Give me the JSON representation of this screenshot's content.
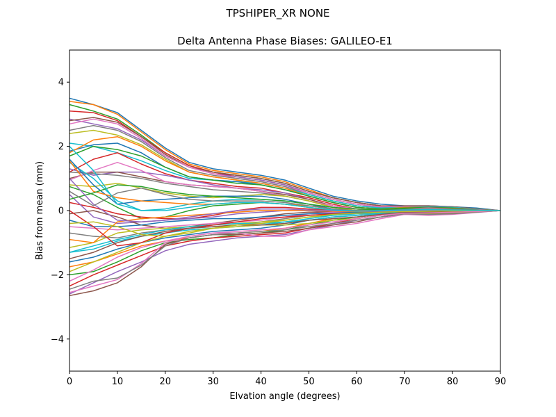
{
  "figure": {
    "suptitle": "TPSHIPER_XR     NONE",
    "title": "Delta Antenna Phase Biases: GALILEO-E1"
  },
  "chart_data": {
    "type": "line",
    "title": "Delta Antenna Phase Biases: GALILEO-E1",
    "xlabel": "Elvation angle (degrees)",
    "ylabel": "Bias from mean (mm)",
    "xlim": [
      0,
      90
    ],
    "ylim": [
      -5,
      5
    ],
    "xticks": [
      0,
      10,
      20,
      30,
      40,
      50,
      60,
      70,
      80,
      90
    ],
    "yticks": [
      -4,
      -2,
      0,
      2,
      4
    ],
    "xtick_labels": [
      "0",
      "10",
      "20",
      "30",
      "40",
      "50",
      "60",
      "70",
      "80",
      "90"
    ],
    "ytick_labels": [
      "−4",
      "−2",
      "0",
      "2",
      "4"
    ],
    "grid": false,
    "x": [
      0,
      5,
      10,
      15,
      20,
      25,
      30,
      35,
      40,
      45,
      50,
      55,
      60,
      65,
      70,
      75,
      80,
      85,
      90
    ],
    "color_cycle": [
      "#1f77b4",
      "#ff7f0e",
      "#2ca02c",
      "#d62728",
      "#9467bd",
      "#8c564b",
      "#e377c2",
      "#7f7f7f",
      "#bcbd22",
      "#17becf"
    ],
    "series": [
      {
        "values": [
          3.5,
          3.3,
          3.05,
          2.5,
          1.95,
          1.5,
          1.3,
          1.2,
          1.1,
          0.95,
          0.7,
          0.45,
          0.3,
          0.2,
          0.15,
          0.15,
          0.12,
          0.08,
          0.0
        ]
      },
      {
        "values": [
          3.4,
          3.3,
          3.0,
          2.45,
          1.9,
          1.45,
          1.25,
          1.15,
          1.05,
          0.9,
          0.65,
          0.4,
          0.25,
          0.15,
          0.12,
          0.1,
          0.1,
          0.05,
          0.0
        ]
      },
      {
        "values": [
          3.3,
          3.1,
          2.85,
          2.35,
          1.8,
          1.4,
          1.2,
          1.1,
          1.0,
          0.85,
          0.6,
          0.4,
          0.25,
          0.15,
          0.1,
          0.1,
          0.08,
          0.05,
          0.0
        ]
      },
      {
        "values": [
          3.1,
          3.05,
          2.8,
          2.3,
          1.8,
          1.4,
          1.2,
          1.05,
          0.95,
          0.8,
          0.55,
          0.35,
          0.2,
          0.12,
          0.1,
          0.08,
          0.08,
          0.04,
          0.0
        ]
      },
      {
        "values": [
          2.85,
          2.7,
          2.55,
          2.2,
          1.7,
          1.35,
          1.15,
          1.05,
          0.95,
          0.8,
          0.55,
          0.35,
          0.2,
          0.1,
          0.08,
          0.1,
          0.08,
          0.04,
          0.0
        ]
      },
      {
        "values": [
          2.8,
          2.9,
          2.75,
          2.3,
          1.75,
          1.35,
          1.2,
          1.1,
          1.0,
          0.85,
          0.6,
          0.4,
          0.25,
          0.15,
          0.15,
          0.15,
          0.12,
          0.06,
          0.0
        ]
      },
      {
        "values": [
          2.7,
          2.85,
          2.7,
          2.25,
          1.7,
          1.35,
          1.15,
          1.0,
          0.9,
          0.75,
          0.55,
          0.35,
          0.2,
          0.12,
          0.12,
          0.12,
          0.1,
          0.05,
          0.0
        ]
      },
      {
        "values": [
          2.5,
          2.65,
          2.5,
          2.15,
          1.65,
          1.25,
          1.1,
          1.0,
          0.9,
          0.75,
          0.5,
          0.3,
          0.15,
          0.08,
          0.1,
          0.12,
          0.1,
          0.05,
          0.0
        ]
      },
      {
        "values": [
          2.4,
          2.5,
          2.35,
          2.05,
          1.6,
          1.2,
          1.05,
          0.95,
          0.85,
          0.7,
          0.5,
          0.3,
          0.15,
          0.08,
          0.08,
          0.1,
          0.08,
          0.04,
          0.0
        ]
      },
      {
        "values": [
          2.1,
          2.0,
          1.8,
          1.55,
          1.25,
          1.0,
          0.95,
          0.9,
          0.85,
          0.7,
          0.5,
          0.3,
          0.15,
          0.08,
          0.1,
          0.12,
          0.1,
          0.05,
          0.0
        ]
      },
      {
        "values": [
          1.85,
          2.05,
          2.1,
          1.8,
          1.35,
          1.05,
          0.95,
          0.9,
          0.8,
          0.65,
          0.45,
          0.25,
          0.1,
          0.05,
          0.08,
          0.1,
          0.08,
          0.04,
          0.0
        ]
      },
      {
        "values": [
          1.8,
          2.2,
          2.3,
          2.0,
          1.55,
          1.2,
          1.05,
          0.95,
          0.85,
          0.7,
          0.45,
          0.25,
          0.1,
          0.05,
          0.1,
          0.1,
          0.08,
          0.04,
          0.0
        ]
      },
      {
        "values": [
          1.7,
          2.0,
          1.9,
          1.7,
          1.35,
          1.05,
          0.95,
          0.85,
          0.8,
          0.65,
          0.45,
          0.25,
          0.1,
          0.05,
          0.08,
          0.1,
          0.08,
          0.04,
          0.0
        ]
      },
      {
        "values": [
          1.2,
          1.6,
          1.8,
          1.45,
          1.15,
          0.95,
          0.85,
          0.75,
          0.7,
          0.55,
          0.4,
          0.2,
          0.05,
          0.02,
          0.05,
          0.08,
          0.06,
          0.03,
          0.0
        ]
      },
      {
        "values": [
          1.3,
          1.1,
          1.2,
          1.2,
          1.1,
          0.95,
          0.8,
          0.7,
          0.65,
          0.55,
          0.35,
          0.15,
          0.05,
          0.02,
          0.05,
          0.08,
          0.06,
          0.03,
          0.0
        ]
      },
      {
        "values": [
          1.0,
          1.2,
          1.2,
          1.05,
          0.9,
          0.8,
          0.75,
          0.7,
          0.6,
          0.5,
          0.35,
          0.15,
          0.05,
          0.0,
          0.05,
          0.08,
          0.06,
          0.03,
          0.0
        ]
      },
      {
        "values": [
          0.95,
          1.25,
          1.5,
          1.25,
          0.9,
          0.8,
          0.75,
          0.7,
          0.6,
          0.45,
          0.3,
          0.15,
          0.05,
          0.0,
          0.05,
          0.08,
          0.05,
          0.03,
          0.0
        ]
      },
      {
        "values": [
          1.2,
          1.15,
          1.1,
          1.0,
          0.85,
          0.75,
          0.65,
          0.6,
          0.55,
          0.45,
          0.3,
          0.1,
          0.0,
          0.0,
          0.05,
          0.05,
          0.05,
          0.02,
          0.0
        ]
      },
      {
        "values": [
          0.8,
          0.75,
          0.85,
          0.7,
          0.55,
          0.45,
          0.4,
          0.45,
          0.5,
          0.45,
          0.3,
          0.1,
          0.0,
          0.0,
          0.05,
          0.05,
          0.05,
          0.02,
          0.0
        ]
      },
      {
        "values": [
          1.5,
          1.0,
          0.3,
          0.0,
          0.05,
          0.2,
          0.3,
          0.35,
          0.35,
          0.3,
          0.2,
          0.05,
          -0.05,
          0.0,
          0.05,
          0.05,
          0.04,
          0.02,
          0.0
        ]
      },
      {
        "values": [
          1.6,
          0.8,
          0.2,
          0.3,
          0.35,
          0.4,
          0.45,
          0.45,
          0.45,
          0.35,
          0.2,
          0.05,
          0.0,
          0.02,
          0.05,
          0.05,
          0.04,
          0.02,
          0.0
        ]
      },
      {
        "values": [
          1.55,
          0.6,
          0.4,
          0.3,
          0.25,
          0.2,
          0.2,
          0.25,
          0.25,
          0.2,
          0.15,
          0.05,
          0.0,
          0.02,
          0.05,
          0.05,
          0.04,
          0.02,
          0.0
        ]
      },
      {
        "values": [
          0.75,
          0.5,
          0.1,
          -0.25,
          -0.2,
          0.0,
          0.15,
          0.2,
          0.25,
          0.2,
          0.1,
          0.0,
          -0.05,
          -0.02,
          0.0,
          0.02,
          0.02,
          0.01,
          0.0
        ]
      },
      {
        "values": [
          0.25,
          0.1,
          -0.1,
          -0.2,
          -0.25,
          -0.25,
          -0.15,
          0.0,
          0.1,
          0.1,
          0.05,
          0.0,
          -0.05,
          -0.05,
          0.0,
          0.02,
          0.02,
          0.01,
          0.0
        ]
      },
      {
        "values": [
          0.5,
          -0.2,
          -0.4,
          -0.35,
          -0.3,
          -0.25,
          -0.2,
          -0.1,
          -0.05,
          0.0,
          0.0,
          -0.05,
          -0.05,
          -0.05,
          -0.02,
          0.0,
          0.0,
          0.0,
          0.0
        ]
      },
      {
        "values": [
          -0.1,
          0.0,
          -0.2,
          -0.45,
          -0.55,
          -0.5,
          -0.4,
          -0.3,
          -0.2,
          -0.1,
          -0.05,
          -0.05,
          -0.05,
          -0.05,
          -0.02,
          0.0,
          0.0,
          0.0,
          0.0
        ]
      },
      {
        "values": [
          -0.5,
          -0.55,
          -0.6,
          -0.55,
          -0.5,
          -0.45,
          -0.4,
          -0.35,
          -0.3,
          -0.2,
          -0.1,
          -0.05,
          -0.05,
          -0.05,
          -0.02,
          0.0,
          0.0,
          0.0,
          0.0
        ]
      },
      {
        "values": [
          -0.7,
          -0.8,
          -0.85,
          -0.7,
          -0.6,
          -0.55,
          -0.5,
          -0.45,
          -0.35,
          -0.25,
          -0.15,
          -0.1,
          -0.1,
          -0.08,
          -0.05,
          -0.02,
          0.0,
          0.0,
          0.0
        ]
      },
      {
        "values": [
          -1.15,
          -1.0,
          -0.7,
          -0.6,
          -0.55,
          -0.5,
          -0.45,
          -0.4,
          -0.35,
          -0.3,
          -0.2,
          -0.15,
          -0.1,
          -0.08,
          -0.05,
          -0.03,
          -0.02,
          0.0,
          0.0
        ]
      },
      {
        "values": [
          -1.3,
          -1.2,
          -0.95,
          -0.8,
          -0.7,
          -0.6,
          -0.55,
          -0.5,
          -0.45,
          -0.35,
          -0.25,
          -0.15,
          -0.1,
          -0.08,
          -0.05,
          -0.05,
          -0.03,
          -0.02,
          0.0
        ]
      },
      {
        "values": [
          -1.6,
          -1.45,
          -1.2,
          -1.0,
          -0.85,
          -0.75,
          -0.65,
          -0.6,
          -0.55,
          -0.45,
          -0.3,
          -0.2,
          -0.15,
          -0.1,
          -0.08,
          -0.06,
          -0.04,
          -0.02,
          0.0
        ]
      },
      {
        "values": [
          -1.75,
          -1.6,
          -1.35,
          -1.1,
          -0.95,
          -0.85,
          -0.75,
          -0.7,
          -0.65,
          -0.55,
          -0.4,
          -0.25,
          -0.2,
          -0.12,
          -0.1,
          -0.08,
          -0.06,
          -0.03,
          0.0
        ]
      },
      {
        "values": [
          -2.0,
          -1.9,
          -1.6,
          -1.25,
          -1.0,
          -0.9,
          -0.85,
          -0.75,
          -0.7,
          -0.6,
          -0.45,
          -0.3,
          -0.2,
          -0.12,
          -0.1,
          -0.08,
          -0.06,
          -0.03,
          0.0
        ]
      },
      {
        "values": [
          -2.35,
          -2.0,
          -1.7,
          -1.4,
          -1.1,
          -0.95,
          -0.85,
          -0.8,
          -0.75,
          -0.7,
          -0.55,
          -0.4,
          -0.25,
          -0.15,
          -0.1,
          -0.1,
          -0.08,
          -0.04,
          0.0
        ]
      },
      {
        "values": [
          -2.6,
          -2.25,
          -1.9,
          -1.6,
          -1.25,
          -1.05,
          -0.95,
          -0.85,
          -0.8,
          -0.75,
          -0.6,
          -0.45,
          -0.3,
          -0.2,
          -0.12,
          -0.1,
          -0.1,
          -0.05,
          0.0
        ]
      },
      {
        "values": [
          -2.65,
          -2.5,
          -2.25,
          -1.75,
          -1.05,
          -0.85,
          -0.75,
          -0.75,
          -0.7,
          -0.65,
          -0.55,
          -0.45,
          -0.35,
          -0.2,
          -0.1,
          -0.1,
          -0.1,
          -0.05,
          0.0
        ]
      },
      {
        "values": [
          -2.55,
          -2.35,
          -2.15,
          -1.65,
          -1.0,
          -0.8,
          -0.7,
          -0.7,
          -0.8,
          -0.8,
          -0.6,
          -0.5,
          -0.4,
          -0.25,
          -0.12,
          -0.15,
          -0.12,
          -0.06,
          0.0
        ]
      },
      {
        "values": [
          -2.45,
          -2.2,
          -2.1,
          -1.7,
          -1.1,
          -0.85,
          -0.75,
          -0.7,
          -0.65,
          -0.6,
          -0.5,
          -0.4,
          -0.3,
          -0.2,
          -0.1,
          -0.12,
          -0.1,
          -0.05,
          0.0
        ]
      },
      {
        "values": [
          -1.9,
          -1.6,
          -1.3,
          -1.0,
          -0.8,
          -0.65,
          -0.55,
          -0.5,
          -0.45,
          -0.45,
          -0.4,
          -0.3,
          -0.25,
          -0.15,
          -0.08,
          -0.08,
          -0.06,
          -0.03,
          0.0
        ]
      },
      {
        "values": [
          -1.3,
          -1.1,
          -0.9,
          -0.75,
          -0.6,
          -0.5,
          -0.45,
          -0.4,
          -0.4,
          -0.35,
          -0.3,
          -0.2,
          -0.15,
          -0.1,
          -0.06,
          -0.05,
          -0.04,
          -0.02,
          0.0
        ]
      },
      {
        "values": [
          -0.3,
          -0.5,
          -0.5,
          -0.45,
          -0.35,
          -0.3,
          -0.25,
          -0.25,
          -0.2,
          -0.15,
          -0.1,
          -0.08,
          -0.05,
          -0.03,
          -0.02,
          -0.01,
          0.0,
          0.0,
          0.0
        ]
      },
      {
        "values": [
          -0.9,
          -1.0,
          -0.35,
          -0.25,
          -0.2,
          -0.15,
          -0.1,
          -0.05,
          0.0,
          0.0,
          0.0,
          -0.02,
          -0.03,
          -0.02,
          -0.01,
          0.0,
          0.0,
          0.0,
          0.0
        ]
      },
      {
        "values": [
          0.35,
          0.55,
          0.8,
          0.75,
          0.6,
          0.5,
          0.45,
          0.4,
          0.35,
          0.3,
          0.2,
          0.1,
          0.05,
          0.02,
          0.05,
          0.05,
          0.04,
          0.02,
          0.0
        ]
      },
      {
        "values": [
          0.0,
          -0.5,
          -1.1,
          -1.0,
          -0.7,
          -0.55,
          -0.45,
          -0.35,
          -0.25,
          -0.2,
          -0.15,
          -0.1,
          -0.08,
          -0.05,
          -0.03,
          -0.02,
          -0.01,
          0.0,
          0.0
        ]
      },
      {
        "values": [
          1.0,
          0.2,
          -0.3,
          -0.35,
          -0.3,
          -0.2,
          -0.1,
          0.0,
          0.05,
          0.05,
          0.02,
          0.0,
          -0.02,
          -0.02,
          0.0,
          0.0,
          0.0,
          0.0,
          0.0
        ]
      },
      {
        "values": [
          -1.5,
          -1.3,
          -1.0,
          -0.8,
          -0.65,
          -0.55,
          -0.5,
          -0.45,
          -0.45,
          -0.4,
          -0.3,
          -0.25,
          -0.2,
          -0.12,
          -0.06,
          -0.05,
          -0.04,
          -0.02,
          0.0
        ]
      },
      {
        "values": [
          -2.2,
          -1.85,
          -1.45,
          -1.15,
          -0.95,
          -0.8,
          -0.7,
          -0.65,
          -0.6,
          -0.55,
          -0.45,
          -0.35,
          -0.25,
          -0.15,
          -0.08,
          -0.07,
          -0.05,
          -0.03,
          0.0
        ]
      },
      {
        "values": [
          0.6,
          0.15,
          0.55,
          0.7,
          0.5,
          0.35,
          0.3,
          0.3,
          0.3,
          0.25,
          0.15,
          0.05,
          0.0,
          0.0,
          0.03,
          0.04,
          0.03,
          0.02,
          0.0
        ]
      },
      {
        "values": [
          -0.4,
          -0.35,
          -0.5,
          -0.75,
          -0.8,
          -0.7,
          -0.55,
          -0.45,
          -0.4,
          -0.3,
          -0.2,
          -0.12,
          -0.08,
          -0.05,
          -0.03,
          -0.02,
          -0.01,
          0.0,
          0.0
        ]
      },
      {
        "values": [
          2.0,
          1.25,
          0.2,
          0.0,
          0.0,
          0.1,
          0.2,
          0.25,
          0.25,
          0.2,
          0.1,
          0.02,
          -0.02,
          0.0,
          0.02,
          0.03,
          0.02,
          0.01,
          0.0
        ]
      }
    ]
  }
}
